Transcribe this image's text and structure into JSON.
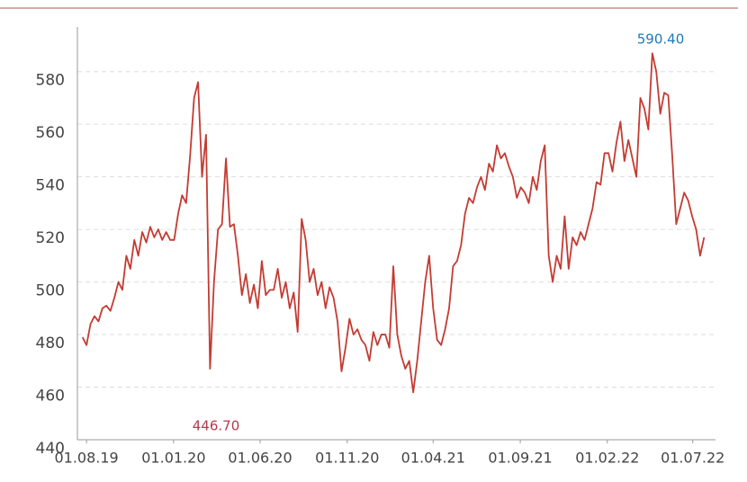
{
  "chart_data": {
    "type": "line",
    "annotations": [
      {
        "text": "590.40",
        "color": "#1a7bb9"
      },
      {
        "text": "446.70",
        "color": "#b5384f"
      }
    ],
    "color": "#c43b32",
    "x": [
      "2019-07-25",
      "2019-08-01",
      "2019-08-08",
      "2019-08-15",
      "2019-08-22",
      "2019-08-29",
      "2019-09-05",
      "2019-09-12",
      "2019-09-19",
      "2019-09-26",
      "2019-10-03",
      "2019-10-10",
      "2019-10-17",
      "2019-10-24",
      "2019-10-31",
      "2019-11-07",
      "2019-11-14",
      "2019-11-21",
      "2019-11-28",
      "2019-12-05",
      "2019-12-12",
      "2019-12-19",
      "2019-12-26",
      "2020-01-02",
      "2020-01-09",
      "2020-01-16",
      "2020-01-23",
      "2020-01-30",
      "2020-02-06",
      "2020-02-13",
      "2020-02-20",
      "2020-02-27",
      "2020-03-05",
      "2020-03-12",
      "2020-03-19",
      "2020-03-26",
      "2020-04-02",
      "2020-04-09",
      "2020-04-16",
      "2020-04-23",
      "2020-04-30",
      "2020-05-07",
      "2020-05-14",
      "2020-05-21",
      "2020-05-28",
      "2020-06-04",
      "2020-06-11",
      "2020-06-18",
      "2020-06-25",
      "2020-07-02",
      "2020-07-09",
      "2020-07-16",
      "2020-07-23",
      "2020-07-30",
      "2020-08-06",
      "2020-08-13",
      "2020-08-20",
      "2020-08-27",
      "2020-09-03",
      "2020-09-10",
      "2020-09-17",
      "2020-09-24",
      "2020-10-01",
      "2020-10-08",
      "2020-10-15",
      "2020-10-22",
      "2020-10-29",
      "2020-11-05",
      "2020-11-12",
      "2020-11-19",
      "2020-11-26",
      "2020-12-03",
      "2020-12-10",
      "2020-12-17",
      "2020-12-24",
      "2020-12-31",
      "2021-01-07",
      "2021-01-14",
      "2021-01-21",
      "2021-01-28",
      "2021-02-04",
      "2021-02-11",
      "2021-02-18",
      "2021-02-25",
      "2021-03-04",
      "2021-03-11",
      "2021-03-18",
      "2021-03-25",
      "2021-04-01",
      "2021-04-08",
      "2021-04-15",
      "2021-04-22",
      "2021-04-29",
      "2021-05-06",
      "2021-05-13",
      "2021-05-20",
      "2021-05-27",
      "2021-06-03",
      "2021-06-10",
      "2021-06-17",
      "2021-06-24",
      "2021-07-01",
      "2021-07-08",
      "2021-07-15",
      "2021-07-22",
      "2021-07-29",
      "2021-08-05",
      "2021-08-12",
      "2021-08-19",
      "2021-08-26",
      "2021-09-02",
      "2021-09-09",
      "2021-09-16",
      "2021-09-23",
      "2021-09-30",
      "2021-10-07",
      "2021-10-14",
      "2021-10-21",
      "2021-10-28",
      "2021-11-04",
      "2021-11-11",
      "2021-11-18",
      "2021-11-25",
      "2021-12-02",
      "2021-12-09",
      "2021-12-16",
      "2021-12-23",
      "2021-12-30",
      "2022-01-06",
      "2022-01-13",
      "2022-01-20",
      "2022-01-27",
      "2022-02-03",
      "2022-02-10",
      "2022-02-17",
      "2022-02-24",
      "2022-03-03",
      "2022-03-10",
      "2022-03-17",
      "2022-03-24",
      "2022-03-31",
      "2022-04-07",
      "2022-04-14",
      "2022-04-21",
      "2022-04-28",
      "2022-05-05",
      "2022-05-12",
      "2022-05-19",
      "2022-05-26",
      "2022-06-02",
      "2022-06-09",
      "2022-06-16",
      "2022-06-23",
      "2022-06-30",
      "2022-07-07",
      "2022-07-14",
      "2022-07-21"
    ],
    "values": [
      479,
      476,
      484,
      487,
      485,
      490,
      491,
      489,
      494,
      500,
      497,
      510,
      505,
      516,
      510,
      519,
      515,
      521,
      517,
      520,
      516,
      519,
      516,
      516,
      526,
      533,
      530,
      548,
      570,
      576,
      540,
      556,
      467,
      500,
      520,
      522,
      547,
      521,
      522,
      510,
      495,
      503,
      492,
      499,
      490,
      508,
      495,
      497,
      497,
      505,
      494,
      500,
      490,
      496,
      481,
      524,
      516,
      500,
      505,
      495,
      500,
      490,
      498,
      494,
      485,
      466,
      475,
      486,
      480,
      482,
      478,
      476,
      470,
      481,
      476,
      480,
      480,
      475,
      506,
      480,
      472,
      467,
      470,
      458,
      470,
      485,
      500,
      510,
      490,
      478,
      476,
      482,
      490,
      506,
      508,
      514,
      526,
      532,
      530,
      536,
      540,
      535,
      545,
      542,
      552,
      547,
      549,
      544,
      540,
      532,
      536,
      534,
      530,
      540,
      535,
      546,
      552,
      510,
      500,
      510,
      505,
      525,
      505,
      517,
      514,
      519,
      516,
      522,
      528,
      538,
      537,
      549,
      549,
      542,
      553,
      561,
      546,
      554,
      547,
      540,
      570,
      566,
      558,
      587,
      580,
      564,
      572,
      571,
      548,
      522,
      528,
      534,
      531,
      525,
      520,
      510,
      517
    ],
    "xlim": [
      "2019-07-16",
      "2022-08-10"
    ],
    "xticks": [
      {
        "value": "2019-08-01",
        "label": "01.08.19"
      },
      {
        "value": "2020-01-01",
        "label": "01.01.20"
      },
      {
        "value": "2020-06-01",
        "label": "01.06.20"
      },
      {
        "value": "2020-11-01",
        "label": "01.11.20"
      },
      {
        "value": "2021-04-01",
        "label": "01.04.21"
      },
      {
        "value": "2021-09-01",
        "label": "01.09.21"
      },
      {
        "value": "2022-02-01",
        "label": "01.02.22"
      },
      {
        "value": "2022-07-01",
        "label": "01.07.22"
      }
    ],
    "ylim": [
      440,
      597
    ],
    "yticks": [
      440,
      460,
      480,
      500,
      520,
      540,
      560,
      580
    ],
    "grid": true
  }
}
